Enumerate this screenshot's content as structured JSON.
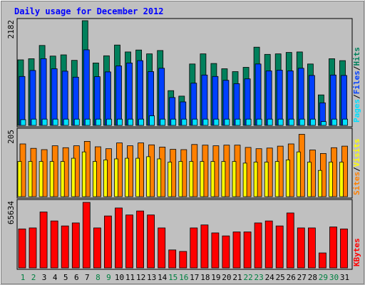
{
  "title": "Daily usage for December 2012",
  "colors": {
    "hits": "#00805c",
    "files": "#0040ff",
    "pages": "#00e0ff",
    "visits": "#ffff00",
    "sites": "#ff8000",
    "kbytes": "#ff0000",
    "title": "#0000ff",
    "weekend_day": "#008040",
    "weekday_day": "#000000"
  },
  "legends": {
    "top": {
      "pages": "Pages",
      "sep1": "/",
      "files": "Files",
      "sep2": "/",
      "hits": "Hits"
    },
    "middle": {
      "sites": "Sites",
      "sep": "/",
      "visits": "Visits"
    },
    "bottom": {
      "kbytes": "KBytes"
    }
  },
  "chart_data": [
    {
      "type": "bar",
      "panel": "hits-files-pages",
      "categories": [
        "1",
        "2",
        "3",
        "4",
        "5",
        "6",
        "7",
        "8",
        "9",
        "10",
        "11",
        "12",
        "13",
        "14",
        "15",
        "16",
        "17",
        "18",
        "19",
        "20",
        "21",
        "22",
        "23",
        "24",
        "25",
        "26",
        "27",
        "28",
        "29",
        "30",
        "31"
      ],
      "y_max_label": "2182",
      "ylim": [
        0,
        2182
      ],
      "series": [
        {
          "name": "Hits",
          "values": [
            1365,
            1390,
            1665,
            1445,
            1470,
            1355,
            2182,
            1300,
            1450,
            1675,
            1530,
            1570,
            1490,
            1560,
            725,
            610,
            1280,
            1490,
            1290,
            1180,
            1120,
            1210,
            1630,
            1480,
            1490,
            1520,
            1530,
            1280,
            635,
            1390,
            1350
          ]
        },
        {
          "name": "Files",
          "values": [
            1020,
            1145,
            1390,
            1180,
            1130,
            1005,
            1575,
            1015,
            1115,
            1240,
            1300,
            1350,
            1120,
            1190,
            580,
            490,
            880,
            1050,
            1020,
            940,
            870,
            970,
            1280,
            1135,
            1150,
            1135,
            1190,
            1040,
            470,
            1050,
            1040
          ]
        },
        {
          "name": "Pages",
          "values": [
            120,
            130,
            130,
            130,
            130,
            130,
            130,
            130,
            130,
            130,
            130,
            130,
            200,
            130,
            130,
            130,
            130,
            130,
            130,
            130,
            130,
            130,
            130,
            130,
            130,
            130,
            130,
            130,
            80,
            130,
            130
          ]
        }
      ]
    },
    {
      "type": "bar",
      "panel": "sites-visits",
      "categories": [
        "1",
        "2",
        "3",
        "4",
        "5",
        "6",
        "7",
        "8",
        "9",
        "10",
        "11",
        "12",
        "13",
        "14",
        "15",
        "16",
        "17",
        "18",
        "19",
        "20",
        "21",
        "22",
        "23",
        "24",
        "25",
        "26",
        "27",
        "28",
        "29",
        "30",
        "31"
      ],
      "y_max_label": "205",
      "ylim": [
        0,
        205
      ],
      "series": [
        {
          "name": "Sites",
          "values": [
            165,
            151,
            147,
            159,
            153,
            159,
            173,
            156,
            150,
            168,
            159,
            168,
            162,
            155,
            148,
            147,
            163,
            161,
            159,
            161,
            161,
            154,
            150,
            152,
            158,
            165,
            195,
            146,
            135,
            153,
            158
          ]
        },
        {
          "name": "Visits",
          "values": [
            110,
            110,
            110,
            110,
            110,
            120,
            140,
            110,
            115,
            118,
            120,
            120,
            125,
            118,
            108,
            110,
            110,
            110,
            110,
            110,
            110,
            105,
            108,
            108,
            110,
            115,
            140,
            108,
            82,
            108,
            108
          ]
        }
      ]
    },
    {
      "type": "bar",
      "panel": "kbytes",
      "categories": [
        "1",
        "2",
        "3",
        "4",
        "5",
        "6",
        "7",
        "8",
        "9",
        "10",
        "11",
        "12",
        "13",
        "14",
        "15",
        "16",
        "17",
        "18",
        "19",
        "20",
        "21",
        "22",
        "23",
        "24",
        "25",
        "26",
        "27",
        "28",
        "29",
        "30",
        "31"
      ],
      "y_max_label": "65634",
      "ylim": [
        0,
        65634
      ],
      "series": [
        {
          "name": "KBytes",
          "values": [
            39000,
            40000,
            56000,
            47000,
            42000,
            45000,
            65634,
            40000,
            52000,
            60000,
            53000,
            57000,
            53000,
            40000,
            18000,
            16500,
            40000,
            43000,
            35000,
            32000,
            36000,
            36000,
            45000,
            47000,
            42000,
            55000,
            40000,
            40000,
            15000,
            41000,
            39000
          ]
        }
      ]
    }
  ]
}
